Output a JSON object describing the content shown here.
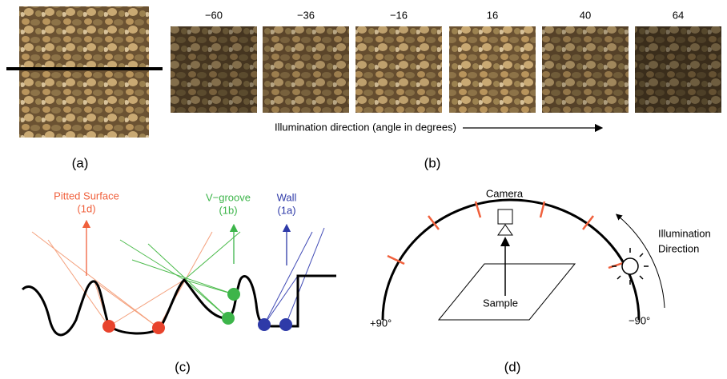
{
  "panel_a": {
    "caption": "(a)"
  },
  "panel_b": {
    "angles": [
      "−60",
      "−36",
      "−16",
      "16",
      "40",
      "64"
    ],
    "axis_label": "Illumination direction (angle in degrees)",
    "caption": "(b)"
  },
  "panel_c": {
    "pitted": "Pitted Surface",
    "pitted_ref": "(1d)",
    "vgroove": "V−groove",
    "vgroove_ref": "(1b)",
    "wall": "Wall",
    "wall_ref": "(1a)",
    "caption": "(c)"
  },
  "panel_d": {
    "camera": "Camera",
    "illum_1": "Illumination",
    "illum_2": "Direction",
    "sample": "Sample",
    "left": "+90°",
    "right": "−90°",
    "caption": "(d)"
  }
}
